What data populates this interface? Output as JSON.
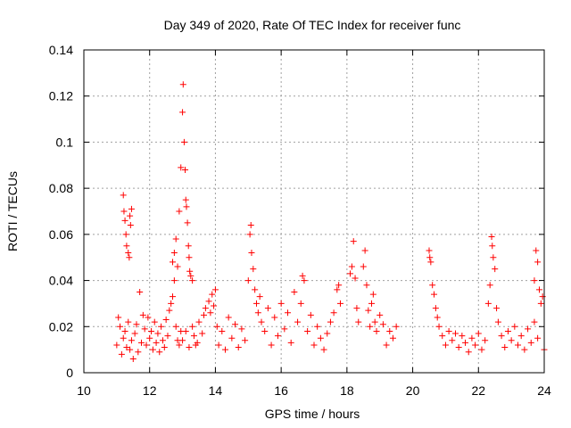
{
  "chart_data": {
    "type": "scatter",
    "title": "Day 349 of 2020, Rate Of TEC Index for receiver func",
    "xlabel": "GPS time / hours",
    "ylabel": "ROTI / TECUs",
    "xlim": [
      10,
      24
    ],
    "ylim": [
      0,
      0.14
    ],
    "xticks": [
      10,
      12,
      14,
      16,
      18,
      20,
      22,
      24
    ],
    "xtick_labels": [
      "10",
      "12",
      "14",
      "16",
      "18",
      "20",
      "22",
      "24"
    ],
    "yticks": [
      0,
      0.02,
      0.04,
      0.06,
      0.08,
      0.1,
      0.12,
      0.14
    ],
    "ytick_labels": [
      "0",
      "0.02",
      "0.04",
      "0.06",
      "0.08",
      "0.1",
      "0.12",
      "0.14"
    ],
    "grid": true,
    "marker": "+",
    "series_color": "#ff0000",
    "points": [
      [
        11.0,
        0.012
      ],
      [
        11.05,
        0.024
      ],
      [
        11.1,
        0.02
      ],
      [
        11.15,
        0.008
      ],
      [
        11.2,
        0.015
      ],
      [
        11.25,
        0.018
      ],
      [
        11.3,
        0.011
      ],
      [
        11.35,
        0.022
      ],
      [
        11.4,
        0.01
      ],
      [
        11.45,
        0.014
      ],
      [
        11.5,
        0.006
      ],
      [
        11.55,
        0.017
      ],
      [
        11.6,
        0.021
      ],
      [
        11.65,
        0.009
      ],
      [
        11.7,
        0.035
      ],
      [
        11.75,
        0.013
      ],
      [
        11.8,
        0.025
      ],
      [
        11.85,
        0.019
      ],
      [
        11.9,
        0.012
      ],
      [
        11.95,
        0.024
      ],
      [
        12.0,
        0.015
      ],
      [
        12.05,
        0.018
      ],
      [
        12.1,
        0.01
      ],
      [
        12.15,
        0.022
      ],
      [
        12.2,
        0.013
      ],
      [
        12.25,
        0.017
      ],
      [
        12.3,
        0.009
      ],
      [
        12.35,
        0.02
      ],
      [
        12.4,
        0.014
      ],
      [
        12.45,
        0.011
      ],
      [
        12.5,
        0.023
      ],
      [
        12.55,
        0.016
      ],
      [
        12.6,
        0.027
      ],
      [
        12.65,
        0.03
      ],
      [
        12.7,
        0.033
      ],
      [
        12.75,
        0.04
      ],
      [
        12.8,
        0.02
      ],
      [
        12.85,
        0.014
      ],
      [
        12.9,
        0.012
      ],
      [
        12.95,
        0.018
      ],
      [
        11.2,
        0.077
      ],
      [
        11.22,
        0.07
      ],
      [
        11.25,
        0.066
      ],
      [
        11.28,
        0.06
      ],
      [
        11.3,
        0.055
      ],
      [
        11.35,
        0.052
      ],
      [
        11.38,
        0.05
      ],
      [
        11.4,
        0.068
      ],
      [
        11.42,
        0.064
      ],
      [
        11.45,
        0.071
      ],
      [
        12.7,
        0.048
      ],
      [
        12.75,
        0.052
      ],
      [
        12.8,
        0.058
      ],
      [
        12.85,
        0.046
      ],
      [
        12.9,
        0.07
      ],
      [
        12.95,
        0.089
      ],
      [
        13.0,
        0.113
      ],
      [
        13.02,
        0.125
      ],
      [
        13.05,
        0.1
      ],
      [
        13.08,
        0.088
      ],
      [
        13.1,
        0.075
      ],
      [
        13.12,
        0.072
      ],
      [
        13.15,
        0.065
      ],
      [
        13.18,
        0.055
      ],
      [
        13.2,
        0.05
      ],
      [
        13.22,
        0.044
      ],
      [
        13.25,
        0.042
      ],
      [
        13.3,
        0.04
      ],
      [
        13.35,
        0.016
      ],
      [
        13.4,
        0.012
      ],
      [
        13.0,
        0.014
      ],
      [
        13.1,
        0.018
      ],
      [
        13.2,
        0.011
      ],
      [
        13.3,
        0.02
      ],
      [
        13.45,
        0.013
      ],
      [
        13.5,
        0.022
      ],
      [
        13.6,
        0.017
      ],
      [
        13.65,
        0.025
      ],
      [
        13.7,
        0.028
      ],
      [
        13.8,
        0.031
      ],
      [
        13.85,
        0.026
      ],
      [
        13.9,
        0.034
      ],
      [
        13.95,
        0.029
      ],
      [
        14.0,
        0.036
      ],
      [
        14.05,
        0.02
      ],
      [
        14.1,
        0.012
      ],
      [
        14.2,
        0.018
      ],
      [
        14.3,
        0.01
      ],
      [
        14.4,
        0.024
      ],
      [
        14.5,
        0.015
      ],
      [
        14.6,
        0.021
      ],
      [
        14.7,
        0.011
      ],
      [
        14.8,
        0.019
      ],
      [
        14.9,
        0.014
      ],
      [
        15.0,
        0.04
      ],
      [
        15.05,
        0.06
      ],
      [
        15.08,
        0.064
      ],
      [
        15.1,
        0.052
      ],
      [
        15.15,
        0.045
      ],
      [
        15.2,
        0.036
      ],
      [
        15.25,
        0.03
      ],
      [
        15.3,
        0.026
      ],
      [
        15.35,
        0.033
      ],
      [
        15.4,
        0.022
      ],
      [
        15.5,
        0.018
      ],
      [
        15.6,
        0.028
      ],
      [
        15.7,
        0.012
      ],
      [
        15.8,
        0.024
      ],
      [
        15.9,
        0.016
      ],
      [
        16.0,
        0.03
      ],
      [
        16.1,
        0.019
      ],
      [
        16.2,
        0.026
      ],
      [
        16.3,
        0.013
      ],
      [
        16.4,
        0.035
      ],
      [
        16.5,
        0.022
      ],
      [
        16.6,
        0.03
      ],
      [
        16.65,
        0.042
      ],
      [
        16.7,
        0.04
      ],
      [
        16.8,
        0.018
      ],
      [
        16.9,
        0.025
      ],
      [
        17.0,
        0.012
      ],
      [
        17.1,
        0.02
      ],
      [
        17.2,
        0.015
      ],
      [
        17.3,
        0.01
      ],
      [
        17.4,
        0.017
      ],
      [
        17.5,
        0.022
      ],
      [
        17.6,
        0.026
      ],
      [
        17.7,
        0.036
      ],
      [
        17.75,
        0.038
      ],
      [
        17.8,
        0.03
      ],
      [
        18.1,
        0.043
      ],
      [
        18.15,
        0.046
      ],
      [
        18.2,
        0.057
      ],
      [
        18.25,
        0.041
      ],
      [
        18.3,
        0.028
      ],
      [
        18.35,
        0.022
      ],
      [
        18.5,
        0.046
      ],
      [
        18.55,
        0.053
      ],
      [
        18.6,
        0.038
      ],
      [
        18.65,
        0.027
      ],
      [
        18.7,
        0.02
      ],
      [
        18.75,
        0.03
      ],
      [
        18.8,
        0.034
      ],
      [
        18.85,
        0.022
      ],
      [
        18.9,
        0.018
      ],
      [
        19.0,
        0.025
      ],
      [
        19.1,
        0.021
      ],
      [
        19.2,
        0.012
      ],
      [
        19.3,
        0.018
      ],
      [
        19.4,
        0.015
      ],
      [
        19.5,
        0.02
      ],
      [
        20.5,
        0.053
      ],
      [
        20.52,
        0.05
      ],
      [
        20.55,
        0.048
      ],
      [
        20.6,
        0.038
      ],
      [
        20.65,
        0.034
      ],
      [
        20.7,
        0.028
      ],
      [
        20.75,
        0.024
      ],
      [
        20.8,
        0.02
      ],
      [
        20.9,
        0.016
      ],
      [
        21.0,
        0.012
      ],
      [
        21.1,
        0.018
      ],
      [
        21.2,
        0.014
      ],
      [
        21.3,
        0.017
      ],
      [
        21.4,
        0.011
      ],
      [
        21.5,
        0.016
      ],
      [
        21.6,
        0.013
      ],
      [
        21.7,
        0.009
      ],
      [
        21.8,
        0.015
      ],
      [
        21.9,
        0.012
      ],
      [
        22.0,
        0.017
      ],
      [
        22.1,
        0.01
      ],
      [
        22.2,
        0.014
      ],
      [
        22.3,
        0.03
      ],
      [
        22.35,
        0.038
      ],
      [
        22.4,
        0.059
      ],
      [
        22.42,
        0.055
      ],
      [
        22.45,
        0.05
      ],
      [
        22.5,
        0.045
      ],
      [
        22.55,
        0.028
      ],
      [
        22.6,
        0.022
      ],
      [
        22.7,
        0.016
      ],
      [
        22.8,
        0.011
      ],
      [
        22.9,
        0.018
      ],
      [
        23.0,
        0.014
      ],
      [
        23.1,
        0.02
      ],
      [
        23.2,
        0.012
      ],
      [
        23.3,
        0.016
      ],
      [
        23.4,
        0.01
      ],
      [
        23.5,
        0.019
      ],
      [
        23.6,
        0.013
      ],
      [
        23.7,
        0.04
      ],
      [
        23.75,
        0.053
      ],
      [
        23.8,
        0.048
      ],
      [
        23.85,
        0.036
      ],
      [
        23.9,
        0.03
      ],
      [
        23.95,
        0.033
      ],
      [
        24.0,
        0.01
      ],
      [
        23.7,
        0.022
      ],
      [
        23.8,
        0.015
      ]
    ]
  }
}
